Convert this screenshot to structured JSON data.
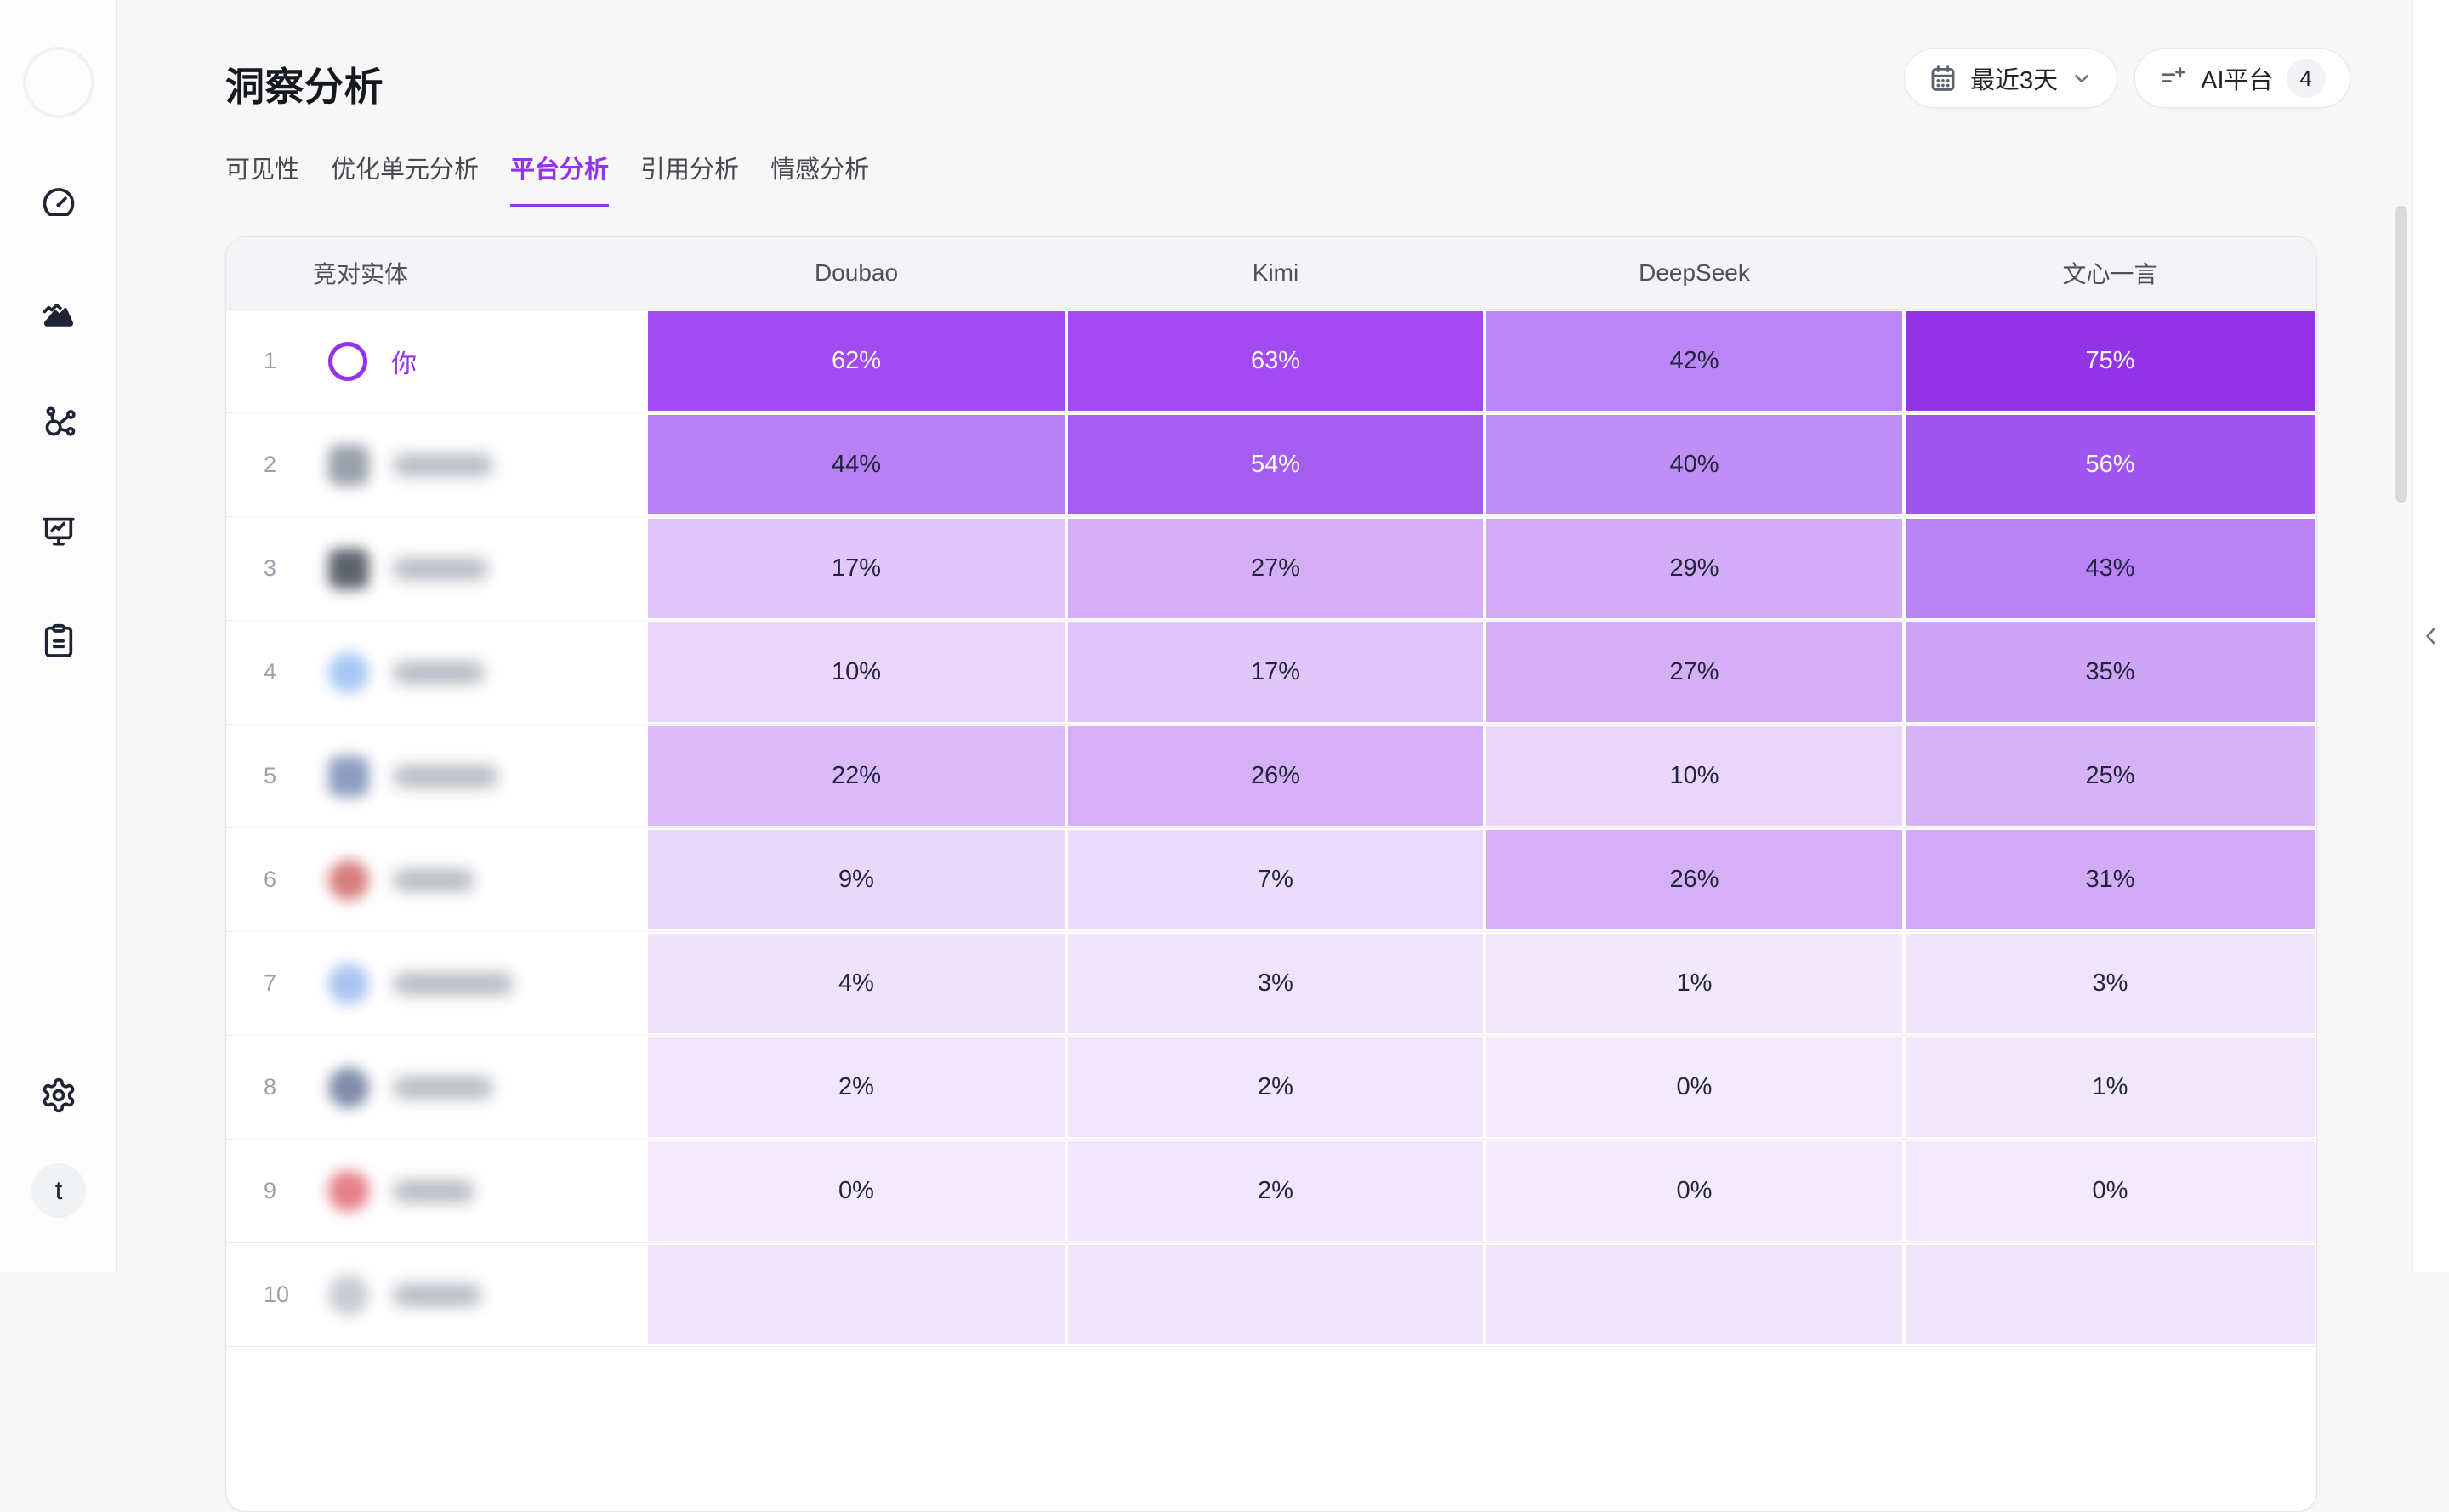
{
  "app": {
    "sidebar": {
      "nav_icons": [
        "gauge-icon",
        "area-chart-icon",
        "network-icon",
        "presentation-icon",
        "clipboard-icon"
      ],
      "settings_icon": "gear-icon",
      "avatar_letter": "t"
    }
  },
  "page": {
    "title": "洞察分析"
  },
  "filters": {
    "date_range": {
      "label": "最近3天"
    },
    "platform": {
      "label": "AI平台",
      "count": "4"
    }
  },
  "tabs": [
    {
      "label": "可见性",
      "active": false
    },
    {
      "label": "优化单元分析",
      "active": false
    },
    {
      "label": "平台分析",
      "active": true
    },
    {
      "label": "引用分析",
      "active": false
    },
    {
      "label": "情感分析",
      "active": false
    }
  ],
  "table": {
    "entity_column_header": "竞对实体",
    "platform_headers": [
      "Doubao",
      "Kimi",
      "DeepSeek",
      "文心一言"
    ],
    "rows": [
      {
        "rank": "1",
        "entity": "你",
        "is_self": true,
        "redacted": false,
        "avatar": {
          "shape": "ring",
          "color": "#9333ea"
        },
        "name_bar_width": 0,
        "values": [
          62,
          63,
          42,
          75
        ]
      },
      {
        "rank": "2",
        "entity": null,
        "is_self": false,
        "redacted": true,
        "avatar": {
          "shape": "square",
          "color": "#99a0ac"
        },
        "name_bar_width": 118,
        "values": [
          44,
          54,
          40,
          56
        ]
      },
      {
        "rank": "3",
        "entity": null,
        "is_self": false,
        "redacted": true,
        "avatar": {
          "shape": "square",
          "color": "#5d636e"
        },
        "name_bar_width": 112,
        "values": [
          17,
          27,
          29,
          43
        ]
      },
      {
        "rank": "4",
        "entity": null,
        "is_self": false,
        "redacted": true,
        "avatar": {
          "shape": "circle",
          "color": "#a6c8f5"
        },
        "name_bar_width": 108,
        "values": [
          10,
          17,
          27,
          35
        ]
      },
      {
        "rank": "5",
        "entity": null,
        "is_self": false,
        "redacted": true,
        "avatar": {
          "shape": "square",
          "color": "#8d9cc0"
        },
        "name_bar_width": 124,
        "values": [
          22,
          26,
          10,
          25
        ]
      },
      {
        "rank": "6",
        "entity": null,
        "is_self": false,
        "redacted": true,
        "avatar": {
          "shape": "circle",
          "color": "#d87e7e"
        },
        "name_bar_width": 96,
        "values": [
          9,
          7,
          26,
          31
        ]
      },
      {
        "rank": "7",
        "entity": null,
        "is_self": false,
        "redacted": true,
        "avatar": {
          "shape": "circle",
          "color": "#a9c3f0"
        },
        "name_bar_width": 142,
        "values": [
          4,
          3,
          1,
          3
        ]
      },
      {
        "rank": "8",
        "entity": null,
        "is_self": false,
        "redacted": true,
        "avatar": {
          "shape": "circle",
          "color": "#7e8ca8"
        },
        "name_bar_width": 118,
        "values": [
          2,
          2,
          0,
          1
        ]
      },
      {
        "rank": "9",
        "entity": null,
        "is_self": false,
        "redacted": true,
        "avatar": {
          "shape": "pin",
          "color": "#e58087"
        },
        "name_bar_width": 96,
        "values": [
          0,
          2,
          0,
          0
        ]
      },
      {
        "rank": "10",
        "entity": null,
        "is_self": false,
        "redacted": true,
        "avatar": {
          "shape": "circle",
          "color": "#c9ccd4"
        },
        "name_bar_width": 104,
        "values": [
          null,
          null,
          null,
          null
        ]
      }
    ]
  },
  "colors": {
    "accent": "#9333ea",
    "heatmap_base": "#9233e8",
    "heatmap_lightest": "#f3eafc"
  }
}
